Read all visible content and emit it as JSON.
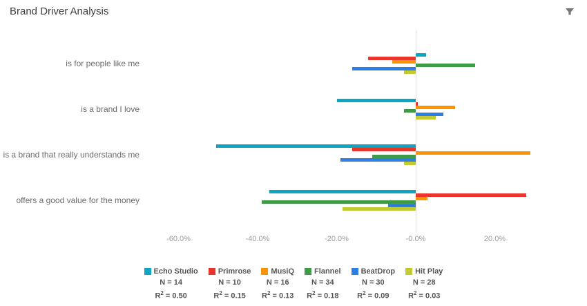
{
  "header": {
    "title": "Brand Driver Analysis",
    "filter_icon": "funnel-icon"
  },
  "chart_data": {
    "type": "bar",
    "orientation": "horizontal",
    "title": "Brand Driver Analysis",
    "categories": [
      "is for people like me",
      "is a brand I love",
      "is a brand that really understands me",
      "offers a good value for the money"
    ],
    "series": [
      {
        "name": "Echo Studio",
        "color": "#0DA6C2",
        "n_label": "N = 14",
        "r2_label": "R² = 0.50",
        "values": [
          2.6,
          -20,
          -50.5,
          -37
        ]
      },
      {
        "name": "Primrose",
        "color": "#E9352C",
        "n_label": "N = 10",
        "r2_label": "R² = 0.15",
        "values": [
          -12,
          0.5,
          -16,
          28
        ]
      },
      {
        "name": "MusiQ",
        "color": "#FB9402",
        "n_label": "N = 16",
        "r2_label": "R² = 0.13",
        "values": [
          -6,
          10,
          29,
          3
        ]
      },
      {
        "name": "Flannel",
        "color": "#3F9B45",
        "n_label": "N = 34",
        "r2_label": "R² = 0.18",
        "values": [
          15,
          -3,
          -11,
          -39
        ]
      },
      {
        "name": "BeatDrop",
        "color": "#2E7EE4",
        "n_label": "N = 30",
        "r2_label": "R² = 0.09",
        "values": [
          -16,
          7,
          -19,
          -7
        ]
      },
      {
        "name": "Hit Play",
        "color": "#C2CC30",
        "n_label": "N = 28",
        "r2_label": "R² = 0.03",
        "values": [
          -3,
          5,
          -3,
          -18.5
        ]
      }
    ],
    "x_ticks": [
      {
        "label": "-60.0%",
        "value": -60
      },
      {
        "label": "-40.0%",
        "value": -40
      },
      {
        "label": "-20.0%",
        "value": -20
      },
      {
        "label": "-0.0%",
        "value": 0
      },
      {
        "label": "20.0%",
        "value": 20
      }
    ],
    "xlabel": "",
    "ylabel": "",
    "xlim": [
      -68,
      41
    ],
    "grid": "zero-line-only",
    "legend_position": "bottom"
  }
}
